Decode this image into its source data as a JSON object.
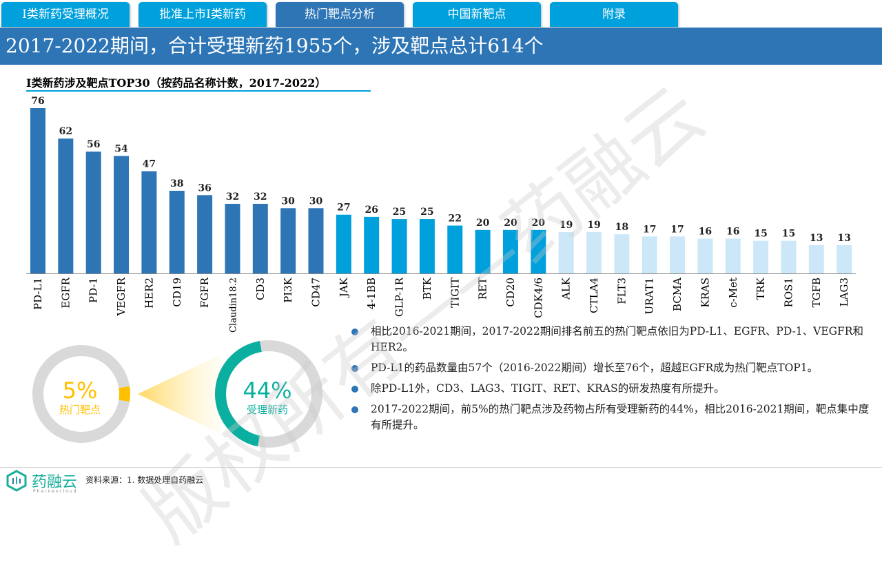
{
  "tabs": [
    {
      "label": "I类新药受理概况"
    },
    {
      "label": "批准上市I类新药"
    },
    {
      "label": "热门靶点分析"
    },
    {
      "label": "中国新靶点"
    },
    {
      "label": "附录"
    }
  ],
  "banner": "2017-2022期间，合计受理新药1955个，涉及靶点总计614个",
  "chart_data": {
    "type": "bar",
    "title": "I类新药涉及靶点TOP30（按药品名称计数，2017-2022）",
    "categories": [
      "PD-L1",
      "EGFR",
      "PD-1",
      "VEGFR",
      "HER2",
      "CD19",
      "FGFR",
      "Claudin18.2",
      "CD3",
      "PI3K",
      "CD47",
      "JAK",
      "4-1BB",
      "GLP-1R",
      "BTK",
      "TIGIT",
      "RET",
      "CD20",
      "CDK4/6",
      "ALK",
      "CTLA4",
      "FLT3",
      "URAT1",
      "BCMA",
      "KRAS",
      "c-Met",
      "TRK",
      "ROS1",
      "TGFB",
      "LAG3"
    ],
    "values": [
      76,
      62,
      56,
      54,
      47,
      38,
      36,
      32,
      32,
      30,
      30,
      27,
      26,
      25,
      25,
      22,
      20,
      20,
      20,
      19,
      19,
      18,
      17,
      17,
      16,
      16,
      15,
      15,
      13,
      13
    ],
    "tiers": [
      1,
      1,
      1,
      1,
      1,
      1,
      1,
      1,
      1,
      1,
      1,
      2,
      2,
      2,
      2,
      2,
      2,
      2,
      2,
      3,
      3,
      3,
      3,
      3,
      3,
      3,
      3,
      3,
      3,
      3
    ],
    "colors": {
      "1": "#2E75B6",
      "2": "#00A0DC",
      "3": "#CCE8F8"
    },
    "ylim": [
      0,
      80
    ]
  },
  "bullets": [
    "相比2016-2021期间，2017-2022期间排名前五的热门靶点依旧为PD-L1、EGFR、PD-1、VEGFR和HER2。",
    "PD-L1的药品数量由57个（2016-2022期间）增长至76个，超越EGFR成为热门靶点TOP1。",
    "除PD-L1外，CD3、LAG3、TIGIT、RET、KRAS的研发热度有所提升。",
    "2017-2022期间，前5%的热门靶点涉及药物占所有受理新药的44%，相比2016-2021期间，靶点集中度有所提升。"
  ],
  "donuts": {
    "left": {
      "value": "5%",
      "label": "热门靶点",
      "fraction": 0.05,
      "color": "#FFC000"
    },
    "right": {
      "value": "44%",
      "label": "受理新药",
      "fraction": 0.44,
      "color": "#0BAFA0"
    }
  },
  "footer": {
    "logo": "药融云",
    "logo_sub": "Pharnexcloud",
    "source": "资料来源：1. 数据处理自药融云"
  },
  "watermark": "版权所有——药融云"
}
